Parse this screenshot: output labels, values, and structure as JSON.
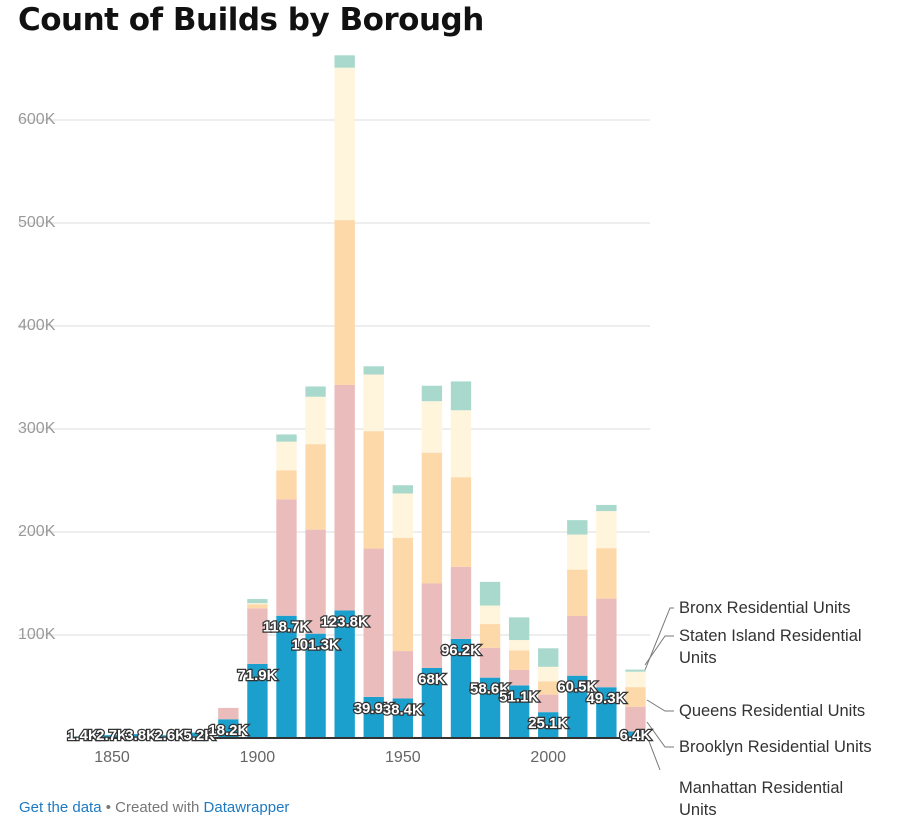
{
  "chart_data": {
    "type": "stacked-bar",
    "title": "Count of Builds by Borough",
    "x": [
      1840,
      1850,
      1860,
      1870,
      1880,
      1890,
      1900,
      1910,
      1920,
      1930,
      1940,
      1950,
      1960,
      1970,
      1980,
      1990,
      2000,
      2010,
      2020,
      2030
    ],
    "series": [
      {
        "name": "Manhattan Residential Units",
        "color": "#1ba0ce",
        "values": [
          1400,
          2700,
          3800,
          2600,
          5200,
          18200,
          71900,
          118700,
          101300,
          123800,
          39900,
          38400,
          68000,
          96200,
          58600,
          51100,
          25100,
          60500,
          49300,
          6400
        ],
        "value_labels": [
          "1.4K",
          "2.7K",
          "3.8K",
          "2.6K",
          "5.2K",
          "18.2K",
          "71.9K",
          "118.7K",
          "101.3K",
          "123.8K",
          "39.9K",
          "38.4K",
          "68K",
          "96.2K",
          "58.6K",
          "51.1K",
          "25.1K",
          "60.5K",
          "49.3K",
          "6.4K"
        ]
      },
      {
        "name": "Brooklyn Residential Units",
        "color": "#ebbcbc",
        "values": [
          0,
          0,
          0,
          0,
          0,
          11000,
          54000,
          113000,
          101000,
          219000,
          144000,
          46000,
          82000,
          70000,
          29000,
          15000,
          17000,
          58000,
          86000,
          24000
        ]
      },
      {
        "name": "Queens Residential Units",
        "color": "#fdd8a8",
        "values": [
          0,
          0,
          0,
          0,
          0,
          0,
          4000,
          28000,
          83000,
          160000,
          114000,
          110000,
          127000,
          87000,
          23000,
          19000,
          13000,
          45000,
          49000,
          19000
        ]
      },
      {
        "name": "Staten Island Residential Units",
        "color": "#fff4dc",
        "values": [
          0,
          0,
          0,
          0,
          0,
          0,
          1000,
          28000,
          46000,
          148000,
          55000,
          43000,
          50000,
          65000,
          18000,
          10000,
          14000,
          34000,
          36000,
          15000
        ]
      },
      {
        "name": "Bronx Residential Units",
        "color": "#a9d9cc",
        "values": [
          0,
          0,
          0,
          0,
          0,
          0,
          4000,
          7000,
          10000,
          12000,
          8000,
          8000,
          15000,
          28000,
          23000,
          22000,
          18000,
          14000,
          6000,
          2000
        ]
      }
    ],
    "xlim": [
      1835,
      2035
    ],
    "xticks": [
      1850,
      1900,
      1950,
      2000
    ],
    "ylim": [
      0,
      700000
    ],
    "yticks": [
      {
        "value": 100000,
        "label": "100K"
      },
      {
        "value": 200000,
        "label": "200K"
      },
      {
        "value": 300000,
        "label": "300K"
      },
      {
        "value": 400000,
        "label": "400K"
      },
      {
        "value": 500000,
        "label": "500K"
      },
      {
        "value": 600000,
        "label": "600K"
      }
    ],
    "grid": true
  },
  "footer": {
    "link1": "Get the data",
    "sep": " • Created with ",
    "link2": "Datawrapper"
  }
}
